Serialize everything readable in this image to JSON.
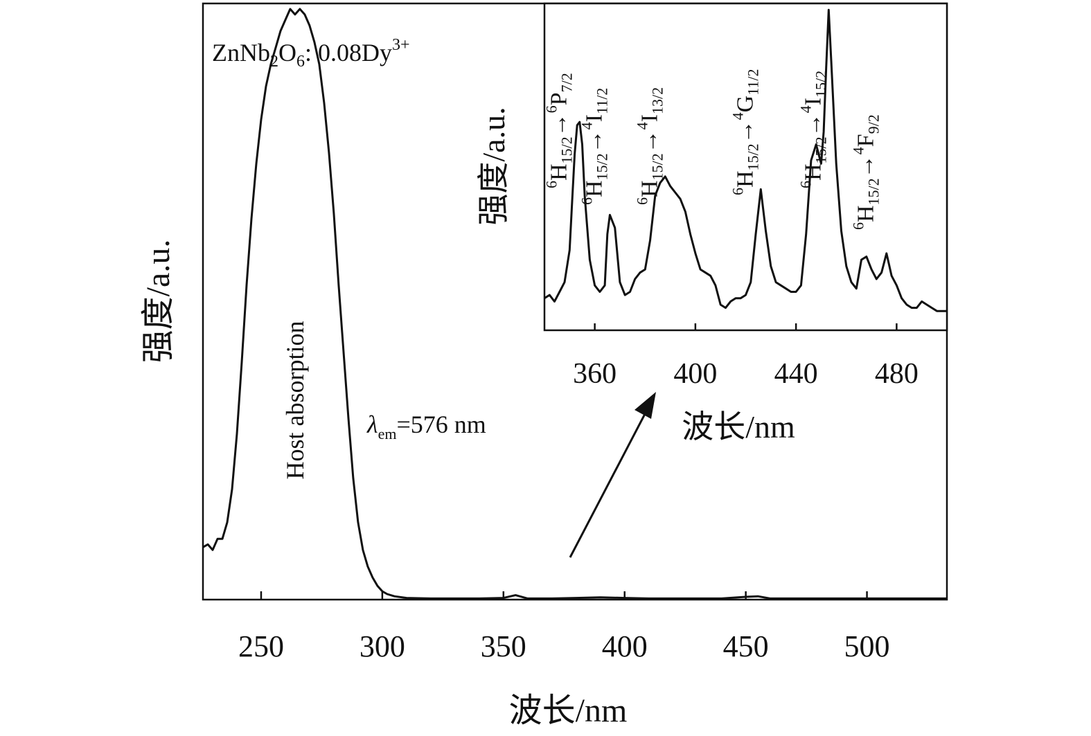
{
  "chart_data": [
    {
      "type": "line",
      "xlabel": "波长/nm",
      "ylabel": "强度/a.u.",
      "xlim": [
        226,
        533
      ],
      "ylim": [
        0,
        1.08
      ],
      "xticks": [
        250,
        300,
        350,
        400,
        450,
        500
      ],
      "x_tick_labels": [
        "250",
        "300",
        "350",
        "400",
        "450",
        "500"
      ],
      "y_tick_labels": [],
      "grid": false,
      "annotations": {
        "sample": "ZnNb2O6: 0.08Dy3+",
        "sample_parts": {
          "base": "ZnNb",
          "sub1": "2",
          "mid": "O",
          "sub2": "6",
          "rest": ": 0.08Dy",
          "sup": "3+"
        },
        "band_label": "Host absorption",
        "emission": "λem=576 nm",
        "emission_parts": {
          "symbol": "λ",
          "sub": "em",
          "rest": "=576 nm"
        }
      },
      "series": [
        {
          "x": [
            226,
            228,
            230,
            232,
            234,
            236,
            238,
            240,
            242,
            244,
            246,
            248,
            250,
            252,
            254,
            256,
            258,
            260,
            262,
            264,
            266,
            268,
            270,
            272,
            274,
            276,
            278,
            280,
            282,
            284,
            286,
            288,
            290,
            292,
            294,
            296,
            298,
            300,
            302,
            305,
            310,
            320,
            330,
            340,
            350,
            355,
            360,
            370,
            380,
            390,
            400,
            410,
            420,
            430,
            440,
            450,
            455,
            460,
            470,
            480,
            490,
            500,
            510,
            520,
            533
          ],
          "y": [
            0.095,
            0.1,
            0.09,
            0.11,
            0.11,
            0.14,
            0.2,
            0.3,
            0.43,
            0.57,
            0.69,
            0.79,
            0.87,
            0.93,
            0.97,
            1.0,
            1.03,
            1.05,
            1.07,
            1.06,
            1.07,
            1.06,
            1.04,
            1.01,
            0.97,
            0.9,
            0.81,
            0.7,
            0.57,
            0.45,
            0.33,
            0.22,
            0.14,
            0.09,
            0.06,
            0.04,
            0.025,
            0.015,
            0.01,
            0.006,
            0.003,
            0.002,
            0.002,
            0.002,
            0.003,
            0.008,
            0.002,
            0.002,
            0.003,
            0.004,
            0.003,
            0.002,
            0.002,
            0.002,
            0.002,
            0.005,
            0.006,
            0.002,
            0.002,
            0.002,
            0.002,
            0.002,
            0.002,
            0.002,
            0.002
          ]
        }
      ]
    },
    {
      "type": "line",
      "xlabel": "波长/nm",
      "ylabel": "强度/a.u.",
      "xlim": [
        340,
        500
      ],
      "ylim": [
        0,
        1.02
      ],
      "xticks": [
        360,
        400,
        440,
        480
      ],
      "x_tick_labels": [
        "360",
        "400",
        "440",
        "480"
      ],
      "y_tick_labels": [],
      "grid": false,
      "transitions": [
        {
          "wavelength": 352,
          "label": "6H15/2→6P7/2",
          "parts": {
            "sup1": "6",
            "sym": "H",
            "sub1": "15/2",
            "arrow": "→",
            "sup2": "6",
            "sym2": "P",
            "sub2": "7/2"
          }
        },
        {
          "wavelength": 366,
          "label": "6H15/2→4I11/2",
          "parts": {
            "sup1": "6",
            "sym": "H",
            "sub1": "15/2",
            "arrow": "→",
            "sup2": "4",
            "sym2": "I",
            "sub2": "11/2"
          }
        },
        {
          "wavelength": 388,
          "label": "6H15/2→4I13/2",
          "parts": {
            "sup1": "6",
            "sym": "H",
            "sub1": "15/2",
            "arrow": "→",
            "sup2": "4",
            "sym2": "I",
            "sub2": "13/2"
          }
        },
        {
          "wavelength": 426,
          "label": "6H15/2→4G11/2",
          "parts": {
            "sup1": "6",
            "sym": "H",
            "sub1": "15/2",
            "arrow": "→",
            "sup2": "4",
            "sym2": "G",
            "sub2": "11/2"
          }
        },
        {
          "wavelength": 453,
          "label": "6H15/2→4I15/2",
          "parts": {
            "sup1": "6",
            "sym": "H",
            "sub1": "15/2",
            "arrow": "→",
            "sup2": "4",
            "sym2": "I",
            "sub2": "15/2"
          }
        },
        {
          "wavelength": 474,
          "label": "6H15/2→4F9/2",
          "parts": {
            "sup1": "6",
            "sym": "H",
            "sub1": "15/2",
            "arrow": "→",
            "sup2": "4",
            "sym2": "F",
            "sub2": "9/2"
          }
        }
      ],
      "series": [
        {
          "x": [
            340,
            342,
            344,
            346,
            348,
            350,
            351,
            352,
            353,
            354,
            355,
            356,
            358,
            360,
            362,
            364,
            365,
            366,
            368,
            370,
            372,
            374,
            376,
            378,
            380,
            382,
            384,
            386,
            388,
            390,
            392,
            394,
            396,
            398,
            400,
            402,
            404,
            406,
            408,
            410,
            412,
            414,
            416,
            418,
            420,
            422,
            424,
            426,
            428,
            430,
            432,
            434,
            436,
            438,
            440,
            442,
            444,
            446,
            448,
            450,
            451,
            452,
            453,
            454,
            456,
            458,
            460,
            462,
            464,
            466,
            468,
            470,
            472,
            474,
            476,
            478,
            480,
            482,
            484,
            486,
            488,
            490,
            492,
            494,
            496,
            498,
            500
          ],
          "y": [
            0.1,
            0.11,
            0.09,
            0.12,
            0.15,
            0.25,
            0.4,
            0.55,
            0.64,
            0.65,
            0.58,
            0.42,
            0.22,
            0.14,
            0.12,
            0.14,
            0.3,
            0.36,
            0.32,
            0.15,
            0.11,
            0.12,
            0.16,
            0.18,
            0.19,
            0.28,
            0.42,
            0.46,
            0.48,
            0.45,
            0.43,
            0.41,
            0.37,
            0.3,
            0.24,
            0.19,
            0.18,
            0.17,
            0.14,
            0.08,
            0.07,
            0.09,
            0.1,
            0.1,
            0.11,
            0.15,
            0.3,
            0.44,
            0.31,
            0.2,
            0.15,
            0.14,
            0.13,
            0.12,
            0.12,
            0.14,
            0.3,
            0.53,
            0.58,
            0.52,
            0.62,
            0.82,
            1.0,
            0.84,
            0.52,
            0.31,
            0.2,
            0.15,
            0.13,
            0.22,
            0.23,
            0.19,
            0.16,
            0.18,
            0.24,
            0.17,
            0.14,
            0.1,
            0.08,
            0.07,
            0.07,
            0.09,
            0.08,
            0.07,
            0.06,
            0.06,
            0.06
          ]
        }
      ]
    }
  ]
}
